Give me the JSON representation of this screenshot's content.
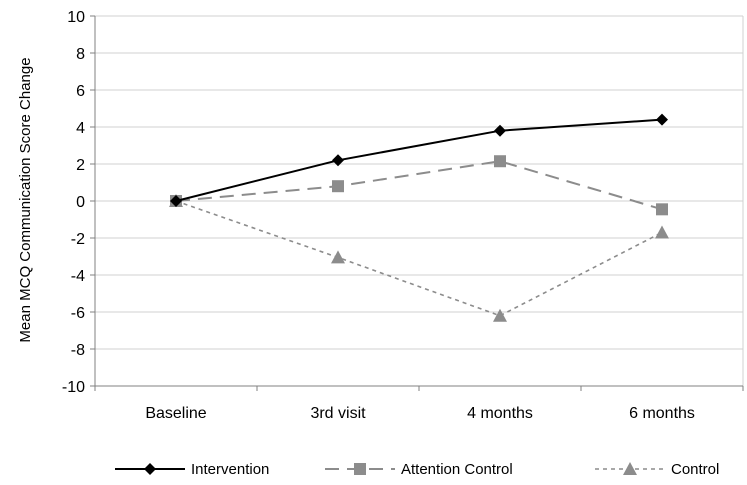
{
  "chart_data": {
    "type": "line",
    "title": "",
    "xlabel": "",
    "ylabel": "Mean MCQ Communication Score Change",
    "categories": [
      "Baseline",
      "3rd visit",
      "4 months",
      "6 months"
    ],
    "ylim": [
      -10,
      10
    ],
    "yticks": [
      10,
      8,
      6,
      4,
      2,
      0,
      -2,
      -4,
      -6,
      -8,
      -10
    ],
    "grid": true,
    "legend_position": "bottom",
    "series": [
      {
        "name": "Intervention",
        "values": [
          0,
          2.2,
          3.8,
          4.4
        ],
        "color": "#000000",
        "marker": "diamond",
        "dash": "solid"
      },
      {
        "name": "Attention Control",
        "values": [
          0,
          0.8,
          2.15,
          -0.45
        ],
        "color": "#8c8c8c",
        "marker": "square",
        "dash": "long-dash"
      },
      {
        "name": "Control",
        "values": [
          0,
          -3.05,
          -6.2,
          -1.7
        ],
        "color": "#8c8c8c",
        "marker": "triangle",
        "dash": "short-dash"
      }
    ]
  }
}
